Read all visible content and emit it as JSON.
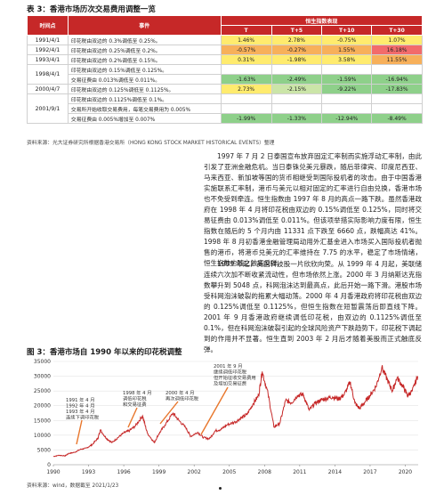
{
  "table": {
    "title": "表 3：香港市场历次交易费用调整一览",
    "headers": {
      "date": "时间点",
      "event": "事件",
      "group": "恒生指数表现",
      "t": "T",
      "t5": "T+5",
      "t10": "T+10",
      "t30": "T+30"
    },
    "rows": [
      {
        "date": "1991/4/1",
        "events": [
          "印花税由双边的 0.3%调低至 0.25%。"
        ],
        "t": "1.46%",
        "t5": "2.78%",
        "t10": "-0.75%",
        "t30": "1.07%"
      },
      {
        "date": "1992/4/1",
        "events": [
          "印花税由双边的 0.25%调低至 0.2%。"
        ],
        "t": "-0.57%",
        "t5": "-0.27%",
        "t10": "1.55%",
        "t30": "16.18%"
      },
      {
        "date": "1993/4/1",
        "events": [
          "印花税由双边的 0.2%调低至 0.15%。"
        ],
        "t": "0.31%",
        "t5": "-1.98%",
        "t10": "3.58%",
        "t30": "11.55%"
      },
      {
        "date": "1998/4/1",
        "events": [
          "印花税由双边的 0.15%调低至 0.125%。",
          "交易征费由 0.013%调低至 0.011%。"
        ],
        "t": "-1.63%",
        "t5": "-2.49%",
        "t10": "-1.59%",
        "t30": "-16.94%"
      },
      {
        "date": "2000/4/7",
        "events": [
          "印花税由双边的 0.125%调低至 0.1125%。"
        ],
        "t": "2.73%",
        "t5": "-2.15%",
        "t10": "-9.22%",
        "t30": "-17.83%"
      },
      {
        "date": "2001/9/1",
        "events": [
          "印花税由双边的 0.1125%调低至 0.1%。",
          "交易所开始收取交易费用，每笔交易费用为 0.005%",
          "交易征费由 0.005%增加至 0.007%"
        ],
        "t": "-1.99%",
        "t5": "-1.33%",
        "t10": "-12.94%",
        "t30": "-8.49%"
      }
    ],
    "source": "资料来源：光大证券研究所根据香港交易所（HONG KONG STOCK MARKET HISTORICAL EVENTS）整理"
  },
  "paragraphs": [
    "1997 年 7 月 2 日泰国宣布放弃固定汇率制而实施浮动汇率制，由此引发了亚洲金融危机。当日泰铢兑美元暴跌，随后菲律宾、印度尼西亚、马来西亚、新加坡等国的货币相继受到国际投机者的攻击。由于中国香港实施联系汇率制，港币与美元以相对固定的汇率进行自由兑换，香港市场也不免受到牵连。恒生指数由 1997 年 8 月的高点一路下跌。虽然香港政府在 1998 年 4 月将印花税由双边的 0.15%调低至 0.125%，同时将交易征费由 0.013%调低至 0.011%。但该项举措实际影响力度有限，恒生指数在随后的 5 个月内由 11331 点下跌至 6660 点，跌幅高达 41%。1998 年 8 月初香港金融管理局动用外汇基金进入市场买入国际投机者抛售的港币，将港币兑美元的汇率维持在 7.75 的水平，稳定了市场情绪，恒生指数也随之触底反弹。",
    "1999 年起，美国科技股一片欣欣向荣。从 1999 年 4 月起，美联储连续六次加不断收紧流动性，但市场依然上涨。2000 年 3 月纳斯达克指数攀升到 5048 点，科网泡沫达到最高点，此后开始一路下滑。港股市场受科网泡沫破裂的拖累大幅动荡。2000 年 4 月香港政府将印花税由双边的 0.125%调低至 0.1125%，但恒生指数在短暂震荡后即直线下降。2001 年 9 月香港政府继续调低印花税，由双边的 0.1125%调低至 0.1%，但在科网泡沫破裂引起的全球风险资产下跌趋势下，印花税下调起到的作用并不显著。恒生直到 2003 年 2 月后才随着美股而正式触底反弹。"
  ],
  "figure": {
    "title": "图 3：香港市场自 1990 年以来的印花税调整",
    "annotations": {
      "a1": [
        "1991 年 4 月",
        "1992 年 4 月",
        "1993 年 4 月",
        "连续下调印花税"
      ],
      "a2": [
        "1998 年 4 月",
        "调低印花税",
        "和交易征费"
      ],
      "a3": [
        "2000 年 4 月",
        "再次调低印花税"
      ],
      "a4": [
        "2001 年 9 月",
        "继续调低印花税",
        "但开始征收交易费用",
        "及增加交易征费"
      ]
    },
    "source": "资料来源：wind，数据截至 2021/1/23"
  },
  "chart_data": {
    "type": "line",
    "title": "",
    "xlabel": "",
    "ylabel": "",
    "x_ticks": [
      "1990",
      "1993",
      "1996",
      "1999",
      "2002",
      "2005",
      "2008",
      "2011",
      "2014",
      "2017",
      "2020"
    ],
    "xlim": [
      1990,
      2021.1
    ],
    "ylim": [
      0,
      35000
    ],
    "y_ticks": [
      "0",
      "5000",
      "10000",
      "15000",
      "20000",
      "25000",
      "30000",
      "35000"
    ],
    "grid": true,
    "legend": "none",
    "color": "#c62828",
    "x": [
      1990.0,
      1990.5,
      1991.0,
      1991.3,
      1991.8,
      1992.3,
      1992.8,
      1993.3,
      1993.8,
      1994.0,
      1994.5,
      1995.0,
      1995.5,
      1996.0,
      1996.5,
      1997.0,
      1997.6,
      1998.0,
      1998.6,
      1999.0,
      1999.5,
      2000.2,
      2000.7,
      2001.3,
      2001.7,
      2002.3,
      2002.8,
      2003.3,
      2003.8,
      2004.3,
      2004.8,
      2005.5,
      2006.0,
      2006.5,
      2007.0,
      2007.5,
      2007.8,
      2008.3,
      2008.8,
      2009.3,
      2009.8,
      2010.3,
      2010.8,
      2011.3,
      2011.8,
      2012.3,
      2012.8,
      2013.3,
      2013.8,
      2014.3,
      2014.8,
      2015.3,
      2015.7,
      2016.1,
      2016.6,
      2017.0,
      2017.5,
      2018.0,
      2018.5,
      2018.9,
      2019.3,
      2019.8,
      2020.2,
      2020.6,
      2021.06
    ],
    "values": [
      2800,
      3200,
      3000,
      3800,
      4200,
      5200,
      5600,
      6800,
      9000,
      11800,
      9000,
      7500,
      9200,
      10800,
      11600,
      13200,
      16600,
      10800,
      7500,
      10500,
      13400,
      17500,
      15000,
      12500,
      9600,
      11000,
      9200,
      8800,
      11500,
      12000,
      13500,
      14500,
      15800,
      17000,
      20500,
      23500,
      31600,
      24000,
      12800,
      14000,
      21800,
      21000,
      23500,
      23800,
      18500,
      20800,
      21900,
      22500,
      23000,
      22300,
      23800,
      28000,
      21000,
      19000,
      21500,
      23500,
      26500,
      33000,
      28500,
      25000,
      29500,
      26500,
      23500,
      25000,
      30000
    ]
  }
}
